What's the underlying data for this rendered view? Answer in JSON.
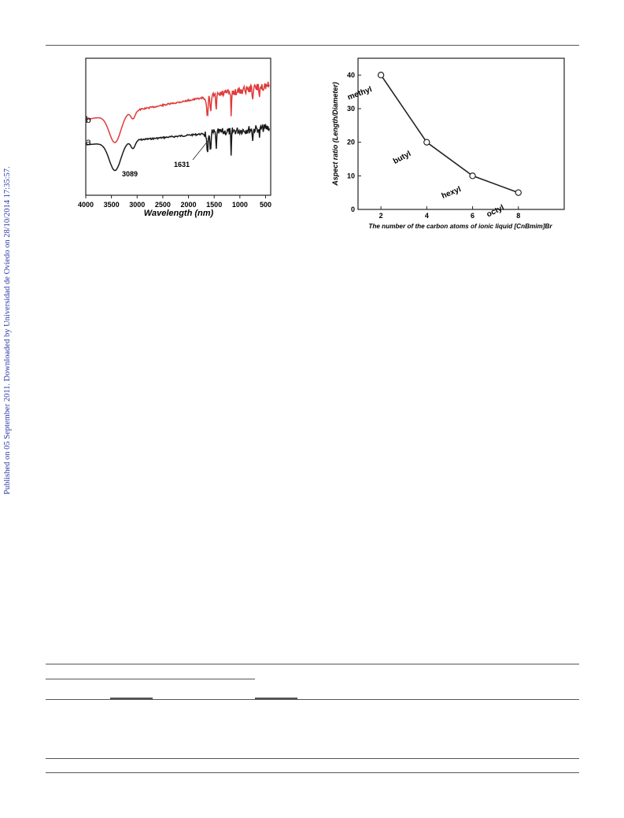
{
  "sidebar": {
    "published_text": "Published on 05 September 2011. Downloaded by Universidad de Oviedo on 28/10/2014 17:35:57."
  },
  "figure_left": {
    "chart_data": {
      "type": "line",
      "xlabel": "Wavelength (nm)",
      "x_ticks": [
        4000,
        3500,
        3000,
        2500,
        2000,
        1500,
        1000,
        500
      ],
      "xlim": [
        4000,
        400
      ],
      "series": [
        {
          "name": "a",
          "color": "#1a1a1a"
        },
        {
          "name": "b",
          "color": "#e03a3a"
        }
      ],
      "annotations": [
        "3089",
        "1631"
      ]
    }
  },
  "figure_right": {
    "chart_data": {
      "type": "line",
      "x": [
        2,
        4,
        6,
        8
      ],
      "y": [
        40,
        20,
        10,
        5
      ],
      "point_labels": [
        "methyl",
        "butyl",
        "hexyl",
        "octyl"
      ],
      "xlabel": "The number of the carbon atoms of ionic liquid [CnBmim]Br",
      "ylabel": "Aspect ratio (Length/Diameter)",
      "x_ticks": [
        2,
        4,
        6,
        8
      ],
      "y_ticks": [
        0,
        10,
        20,
        30,
        40
      ],
      "xlim": [
        1,
        10
      ],
      "ylim": [
        0,
        45
      ]
    }
  }
}
